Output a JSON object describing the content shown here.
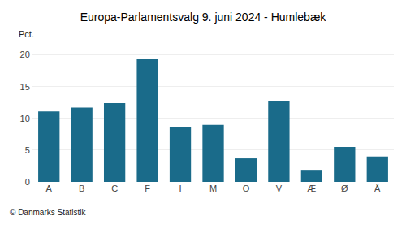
{
  "chart_data": {
    "type": "bar",
    "title": "Europa-Parlamentsvalg 9. juni 2024 - Humlebæk",
    "categories": [
      "A",
      "B",
      "C",
      "F",
      "I",
      "M",
      "O",
      "V",
      "Æ",
      "Ø",
      "Å"
    ],
    "values": [
      11.1,
      11.7,
      12.4,
      19.3,
      8.7,
      9.0,
      3.7,
      12.8,
      1.9,
      5.5,
      4.0
    ],
    "color": "#1a6b8a",
    "ylabel": "Pct.",
    "annotations": [
      "© Danmarks Statistik"
    ],
    "ylim": [
      0,
      22
    ],
    "yticks": [
      0,
      5,
      10,
      15,
      20
    ],
    "grid": true
  }
}
